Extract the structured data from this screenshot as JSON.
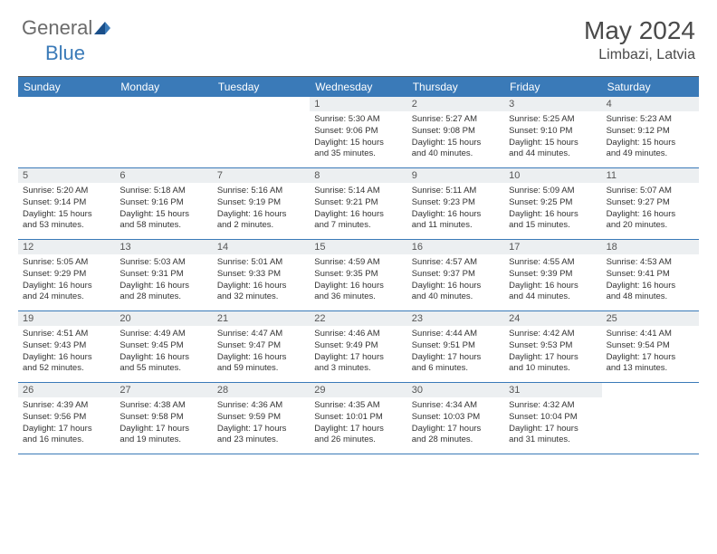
{
  "brand": {
    "text1": "General",
    "text2": "Blue"
  },
  "title": {
    "month": "May 2024",
    "location": "Limbazi, Latvia"
  },
  "colors": {
    "header_bg": "#3a7ab8",
    "header_text": "#ffffff",
    "daynum_bg": "#eceff1",
    "border": "#3a7ab8",
    "logo_gray": "#6b6b6b",
    "logo_blue": "#3a7ab8"
  },
  "day_headers": [
    "Sunday",
    "Monday",
    "Tuesday",
    "Wednesday",
    "Thursday",
    "Friday",
    "Saturday"
  ],
  "weeks": [
    [
      {
        "empty": true
      },
      {
        "empty": true
      },
      {
        "empty": true
      },
      {
        "num": "1",
        "sunrise": "Sunrise: 5:30 AM",
        "sunset": "Sunset: 9:06 PM",
        "daylight1": "Daylight: 15 hours",
        "daylight2": "and 35 minutes."
      },
      {
        "num": "2",
        "sunrise": "Sunrise: 5:27 AM",
        "sunset": "Sunset: 9:08 PM",
        "daylight1": "Daylight: 15 hours",
        "daylight2": "and 40 minutes."
      },
      {
        "num": "3",
        "sunrise": "Sunrise: 5:25 AM",
        "sunset": "Sunset: 9:10 PM",
        "daylight1": "Daylight: 15 hours",
        "daylight2": "and 44 minutes."
      },
      {
        "num": "4",
        "sunrise": "Sunrise: 5:23 AM",
        "sunset": "Sunset: 9:12 PM",
        "daylight1": "Daylight: 15 hours",
        "daylight2": "and 49 minutes."
      }
    ],
    [
      {
        "num": "5",
        "sunrise": "Sunrise: 5:20 AM",
        "sunset": "Sunset: 9:14 PM",
        "daylight1": "Daylight: 15 hours",
        "daylight2": "and 53 minutes."
      },
      {
        "num": "6",
        "sunrise": "Sunrise: 5:18 AM",
        "sunset": "Sunset: 9:16 PM",
        "daylight1": "Daylight: 15 hours",
        "daylight2": "and 58 minutes."
      },
      {
        "num": "7",
        "sunrise": "Sunrise: 5:16 AM",
        "sunset": "Sunset: 9:19 PM",
        "daylight1": "Daylight: 16 hours",
        "daylight2": "and 2 minutes."
      },
      {
        "num": "8",
        "sunrise": "Sunrise: 5:14 AM",
        "sunset": "Sunset: 9:21 PM",
        "daylight1": "Daylight: 16 hours",
        "daylight2": "and 7 minutes."
      },
      {
        "num": "9",
        "sunrise": "Sunrise: 5:11 AM",
        "sunset": "Sunset: 9:23 PM",
        "daylight1": "Daylight: 16 hours",
        "daylight2": "and 11 minutes."
      },
      {
        "num": "10",
        "sunrise": "Sunrise: 5:09 AM",
        "sunset": "Sunset: 9:25 PM",
        "daylight1": "Daylight: 16 hours",
        "daylight2": "and 15 minutes."
      },
      {
        "num": "11",
        "sunrise": "Sunrise: 5:07 AM",
        "sunset": "Sunset: 9:27 PM",
        "daylight1": "Daylight: 16 hours",
        "daylight2": "and 20 minutes."
      }
    ],
    [
      {
        "num": "12",
        "sunrise": "Sunrise: 5:05 AM",
        "sunset": "Sunset: 9:29 PM",
        "daylight1": "Daylight: 16 hours",
        "daylight2": "and 24 minutes."
      },
      {
        "num": "13",
        "sunrise": "Sunrise: 5:03 AM",
        "sunset": "Sunset: 9:31 PM",
        "daylight1": "Daylight: 16 hours",
        "daylight2": "and 28 minutes."
      },
      {
        "num": "14",
        "sunrise": "Sunrise: 5:01 AM",
        "sunset": "Sunset: 9:33 PM",
        "daylight1": "Daylight: 16 hours",
        "daylight2": "and 32 minutes."
      },
      {
        "num": "15",
        "sunrise": "Sunrise: 4:59 AM",
        "sunset": "Sunset: 9:35 PM",
        "daylight1": "Daylight: 16 hours",
        "daylight2": "and 36 minutes."
      },
      {
        "num": "16",
        "sunrise": "Sunrise: 4:57 AM",
        "sunset": "Sunset: 9:37 PM",
        "daylight1": "Daylight: 16 hours",
        "daylight2": "and 40 minutes."
      },
      {
        "num": "17",
        "sunrise": "Sunrise: 4:55 AM",
        "sunset": "Sunset: 9:39 PM",
        "daylight1": "Daylight: 16 hours",
        "daylight2": "and 44 minutes."
      },
      {
        "num": "18",
        "sunrise": "Sunrise: 4:53 AM",
        "sunset": "Sunset: 9:41 PM",
        "daylight1": "Daylight: 16 hours",
        "daylight2": "and 48 minutes."
      }
    ],
    [
      {
        "num": "19",
        "sunrise": "Sunrise: 4:51 AM",
        "sunset": "Sunset: 9:43 PM",
        "daylight1": "Daylight: 16 hours",
        "daylight2": "and 52 minutes."
      },
      {
        "num": "20",
        "sunrise": "Sunrise: 4:49 AM",
        "sunset": "Sunset: 9:45 PM",
        "daylight1": "Daylight: 16 hours",
        "daylight2": "and 55 minutes."
      },
      {
        "num": "21",
        "sunrise": "Sunrise: 4:47 AM",
        "sunset": "Sunset: 9:47 PM",
        "daylight1": "Daylight: 16 hours",
        "daylight2": "and 59 minutes."
      },
      {
        "num": "22",
        "sunrise": "Sunrise: 4:46 AM",
        "sunset": "Sunset: 9:49 PM",
        "daylight1": "Daylight: 17 hours",
        "daylight2": "and 3 minutes."
      },
      {
        "num": "23",
        "sunrise": "Sunrise: 4:44 AM",
        "sunset": "Sunset: 9:51 PM",
        "daylight1": "Daylight: 17 hours",
        "daylight2": "and 6 minutes."
      },
      {
        "num": "24",
        "sunrise": "Sunrise: 4:42 AM",
        "sunset": "Sunset: 9:53 PM",
        "daylight1": "Daylight: 17 hours",
        "daylight2": "and 10 minutes."
      },
      {
        "num": "25",
        "sunrise": "Sunrise: 4:41 AM",
        "sunset": "Sunset: 9:54 PM",
        "daylight1": "Daylight: 17 hours",
        "daylight2": "and 13 minutes."
      }
    ],
    [
      {
        "num": "26",
        "sunrise": "Sunrise: 4:39 AM",
        "sunset": "Sunset: 9:56 PM",
        "daylight1": "Daylight: 17 hours",
        "daylight2": "and 16 minutes."
      },
      {
        "num": "27",
        "sunrise": "Sunrise: 4:38 AM",
        "sunset": "Sunset: 9:58 PM",
        "daylight1": "Daylight: 17 hours",
        "daylight2": "and 19 minutes."
      },
      {
        "num": "28",
        "sunrise": "Sunrise: 4:36 AM",
        "sunset": "Sunset: 9:59 PM",
        "daylight1": "Daylight: 17 hours",
        "daylight2": "and 23 minutes."
      },
      {
        "num": "29",
        "sunrise": "Sunrise: 4:35 AM",
        "sunset": "Sunset: 10:01 PM",
        "daylight1": "Daylight: 17 hours",
        "daylight2": "and 26 minutes."
      },
      {
        "num": "30",
        "sunrise": "Sunrise: 4:34 AM",
        "sunset": "Sunset: 10:03 PM",
        "daylight1": "Daylight: 17 hours",
        "daylight2": "and 28 minutes."
      },
      {
        "num": "31",
        "sunrise": "Sunrise: 4:32 AM",
        "sunset": "Sunset: 10:04 PM",
        "daylight1": "Daylight: 17 hours",
        "daylight2": "and 31 minutes."
      },
      {
        "empty": true
      }
    ]
  ]
}
